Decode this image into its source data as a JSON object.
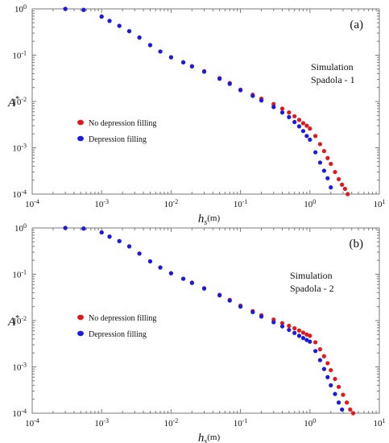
{
  "colors": {
    "red": "#e8141c",
    "blue": "#1a1ae6",
    "axis": "#7a7a7a"
  },
  "chart_data": [
    {
      "type": "scatter",
      "panel_label": "(a)",
      "annotation": [
        "Simulation",
        "Spadola - 1"
      ],
      "xlabel": "h",
      "xlabel_sub": "s",
      "xlabel_unit": "(m)",
      "ylabel": "A",
      "ylabel_sup": "*",
      "xscale": "log",
      "yscale": "log",
      "xlim": [
        0.0001,
        10
      ],
      "ylim": [
        0.0001,
        1
      ],
      "x_ticks": [
        {
          "b": "10",
          "e": "-4"
        },
        {
          "b": "10",
          "e": "-3"
        },
        {
          "b": "10",
          "e": "-2"
        },
        {
          "b": "10",
          "e": "-1"
        },
        {
          "b": "10",
          "e": "0"
        },
        {
          "b": "10",
          "e": "1"
        }
      ],
      "y_ticks": [
        {
          "b": "10",
          "e": "0"
        },
        {
          "b": "10",
          "e": "-1"
        },
        {
          "b": "10",
          "e": "-2"
        },
        {
          "b": "10",
          "e": "-3"
        },
        {
          "b": "10",
          "e": "-4"
        }
      ],
      "legend_position": "middle-left",
      "series": [
        {
          "name": "No depression filling",
          "color": "#e8141c",
          "points": [
            [
              0.0003,
              1.0
            ],
            [
              0.00055,
              0.95
            ],
            [
              0.001,
              0.68
            ],
            [
              0.0013,
              0.55
            ],
            [
              0.0018,
              0.43
            ],
            [
              0.0025,
              0.33
            ],
            [
              0.0035,
              0.24
            ],
            [
              0.005,
              0.165
            ],
            [
              0.007,
              0.12
            ],
            [
              0.01,
              0.09
            ],
            [
              0.015,
              0.07
            ],
            [
              0.02,
              0.058
            ],
            [
              0.03,
              0.045
            ],
            [
              0.05,
              0.032
            ],
            [
              0.07,
              0.025
            ],
            [
              0.1,
              0.018
            ],
            [
              0.15,
              0.014
            ],
            [
              0.2,
              0.0115
            ],
            [
              0.3,
              0.0088
            ],
            [
              0.4,
              0.007
            ],
            [
              0.5,
              0.0058
            ],
            [
              0.6,
              0.0048
            ],
            [
              0.7,
              0.004
            ],
            [
              0.8,
              0.0034
            ],
            [
              0.9,
              0.003
            ],
            [
              1.0,
              0.0026
            ],
            [
              1.2,
              0.0018
            ],
            [
              1.4,
              0.0012
            ],
            [
              1.6,
              0.00085
            ],
            [
              1.8,
              0.0006
            ],
            [
              2.0,
              0.00045
            ],
            [
              2.3,
              0.0003
            ],
            [
              2.6,
              0.00021
            ],
            [
              2.9,
              0.00016
            ],
            [
              3.2,
              0.00013
            ],
            [
              3.5,
              0.0001
            ]
          ]
        },
        {
          "name": "Depression filling",
          "color": "#1a1ae6",
          "points": [
            [
              0.0003,
              1.0
            ],
            [
              0.00055,
              0.95
            ],
            [
              0.001,
              0.68
            ],
            [
              0.0013,
              0.55
            ],
            [
              0.0018,
              0.43
            ],
            [
              0.0025,
              0.33
            ],
            [
              0.0035,
              0.24
            ],
            [
              0.005,
              0.165
            ],
            [
              0.007,
              0.12
            ],
            [
              0.01,
              0.09
            ],
            [
              0.015,
              0.07
            ],
            [
              0.02,
              0.057
            ],
            [
              0.03,
              0.044
            ],
            [
              0.05,
              0.031
            ],
            [
              0.07,
              0.024
            ],
            [
              0.1,
              0.0175
            ],
            [
              0.15,
              0.0132
            ],
            [
              0.2,
              0.0105
            ],
            [
              0.3,
              0.0076
            ],
            [
              0.4,
              0.0058
            ],
            [
              0.5,
              0.0046
            ],
            [
              0.6,
              0.0036
            ],
            [
              0.7,
              0.0029
            ],
            [
              0.8,
              0.0023
            ],
            [
              0.9,
              0.0018
            ],
            [
              1.0,
              0.0015
            ],
            [
              1.2,
              0.0008
            ],
            [
              1.4,
              0.00048
            ],
            [
              1.6,
              0.00032
            ],
            [
              1.8,
              0.00022
            ],
            [
              2.0,
              0.00014
            ]
          ]
        }
      ]
    },
    {
      "type": "scatter",
      "panel_label": "(b)",
      "annotation": [
        "Simulation",
        "Spadola - 2"
      ],
      "xlabel": "h",
      "xlabel_sub": "s",
      "xlabel_unit": "(m)",
      "ylabel": "A",
      "ylabel_sup": "*",
      "xscale": "log",
      "yscale": "log",
      "xlim": [
        0.0001,
        10
      ],
      "ylim": [
        0.0001,
        1
      ],
      "x_ticks": [
        {
          "b": "10",
          "e": "-4"
        },
        {
          "b": "10",
          "e": "-3"
        },
        {
          "b": "10",
          "e": "-2"
        },
        {
          "b": "10",
          "e": "-1"
        },
        {
          "b": "10",
          "e": "0"
        },
        {
          "b": "10",
          "e": "1"
        }
      ],
      "y_ticks": [
        {
          "b": "10",
          "e": "0"
        },
        {
          "b": "10",
          "e": "-1"
        },
        {
          "b": "10",
          "e": "-2"
        },
        {
          "b": "10",
          "e": "-3"
        },
        {
          "b": "10",
          "e": "-4"
        }
      ],
      "legend_position": "lower-left",
      "series": [
        {
          "name": "No depression filling",
          "color": "#e8141c",
          "points": [
            [
              0.0003,
              1.0
            ],
            [
              0.00055,
              0.97
            ],
            [
              0.001,
              0.8
            ],
            [
              0.0013,
              0.65
            ],
            [
              0.0018,
              0.52
            ],
            [
              0.0025,
              0.4
            ],
            [
              0.0035,
              0.28
            ],
            [
              0.005,
              0.19
            ],
            [
              0.007,
              0.14
            ],
            [
              0.01,
              0.105
            ],
            [
              0.015,
              0.08
            ],
            [
              0.02,
              0.066
            ],
            [
              0.03,
              0.05
            ],
            [
              0.05,
              0.036
            ],
            [
              0.07,
              0.028
            ],
            [
              0.1,
              0.021
            ],
            [
              0.15,
              0.016
            ],
            [
              0.2,
              0.013
            ],
            [
              0.3,
              0.0105
            ],
            [
              0.4,
              0.0088
            ],
            [
              0.5,
              0.0077
            ],
            [
              0.6,
              0.0068
            ],
            [
              0.7,
              0.0061
            ],
            [
              0.8,
              0.0055
            ],
            [
              0.9,
              0.005
            ],
            [
              1.0,
              0.0047
            ],
            [
              1.2,
              0.0034
            ],
            [
              1.4,
              0.0024
            ],
            [
              1.6,
              0.0017
            ],
            [
              1.8,
              0.0012
            ],
            [
              2.0,
              0.00085
            ],
            [
              2.3,
              0.00055
            ],
            [
              2.6,
              0.00037
            ],
            [
              3.0,
              0.00025
            ],
            [
              3.4,
              0.00017
            ],
            [
              3.8,
              0.00012
            ],
            [
              4.2,
              0.0001
            ]
          ]
        },
        {
          "name": "Depression filling",
          "color": "#1a1ae6",
          "points": [
            [
              0.0003,
              1.0
            ],
            [
              0.00055,
              0.97
            ],
            [
              0.001,
              0.8
            ],
            [
              0.0013,
              0.65
            ],
            [
              0.0018,
              0.52
            ],
            [
              0.0025,
              0.4
            ],
            [
              0.0035,
              0.28
            ],
            [
              0.005,
              0.19
            ],
            [
              0.007,
              0.14
            ],
            [
              0.01,
              0.105
            ],
            [
              0.015,
              0.08
            ],
            [
              0.02,
              0.065
            ],
            [
              0.03,
              0.049
            ],
            [
              0.05,
              0.035
            ],
            [
              0.07,
              0.027
            ],
            [
              0.1,
              0.02
            ],
            [
              0.15,
              0.0152
            ],
            [
              0.2,
              0.0122
            ],
            [
              0.3,
              0.0092
            ],
            [
              0.4,
              0.0075
            ],
            [
              0.5,
              0.0063
            ],
            [
              0.6,
              0.0054
            ],
            [
              0.7,
              0.0047
            ],
            [
              0.8,
              0.0042
            ],
            [
              0.9,
              0.0038
            ],
            [
              1.0,
              0.0035
            ],
            [
              1.2,
              0.0022
            ],
            [
              1.4,
              0.0014
            ],
            [
              1.6,
              0.0009
            ],
            [
              1.8,
              0.0006
            ],
            [
              2.0,
              0.0004
            ],
            [
              2.3,
              0.00026
            ],
            [
              2.6,
              0.00017
            ],
            [
              2.9,
              0.00012
            ]
          ]
        }
      ]
    }
  ]
}
